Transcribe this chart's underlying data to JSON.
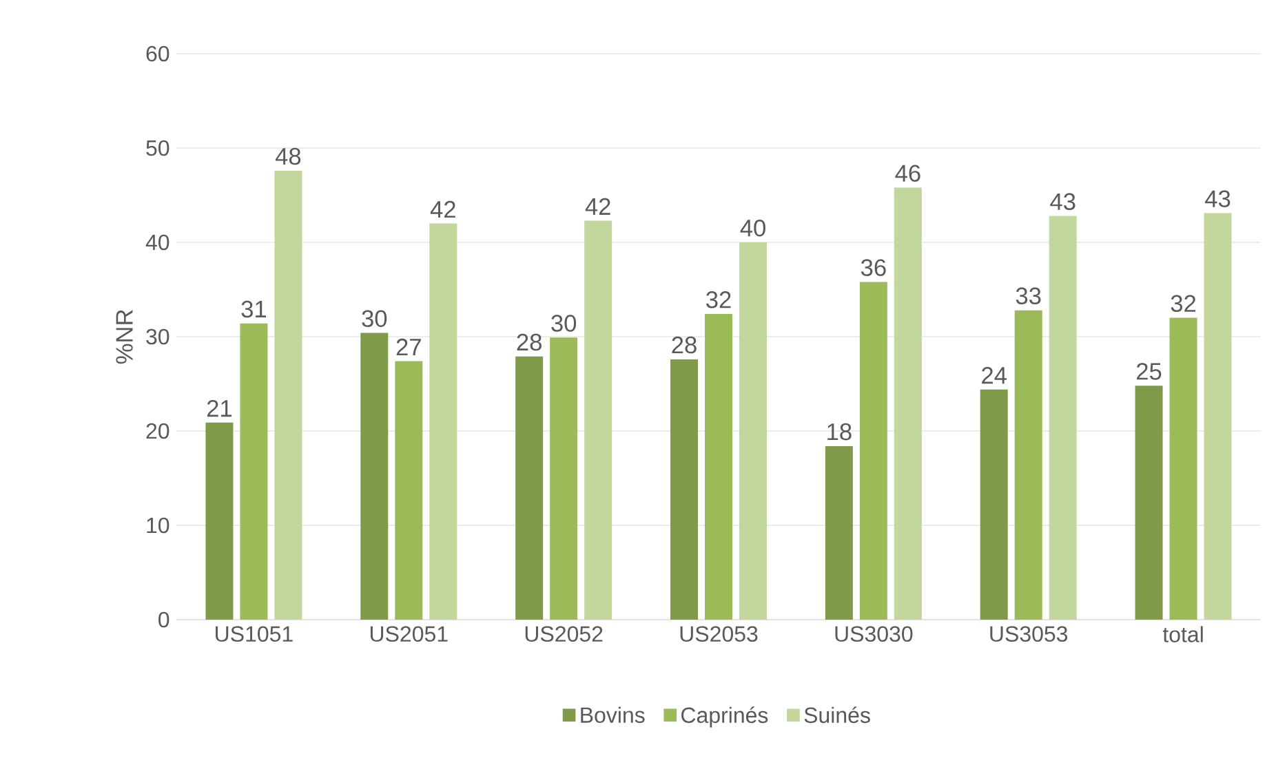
{
  "chart_data": {
    "type": "bar",
    "ylabel": "%NR",
    "categories": [
      "US1051",
      "US2051",
      "US2052",
      "US2053",
      "US3030",
      "US3053",
      "total"
    ],
    "series": [
      {
        "name": "Bovins",
        "color": "#7f9a48",
        "values": [
          20.9,
          30.4,
          27.9,
          27.6,
          18.4,
          24.4,
          24.8
        ],
        "value_labels": [
          "21",
          "30",
          "28",
          "28",
          "18",
          "24",
          "25"
        ]
      },
      {
        "name": "Caprinés",
        "color": "#9bbb59",
        "values": [
          31.4,
          27.4,
          29.9,
          32.4,
          35.8,
          32.8,
          32.0
        ],
        "value_labels": [
          "31",
          "27",
          "30",
          "32",
          "36",
          "33",
          "32"
        ]
      },
      {
        "name": "Suinés",
        "color": "#c3d69b",
        "values": [
          47.6,
          42.0,
          42.3,
          40.0,
          45.8,
          42.8,
          43.1
        ],
        "value_labels": [
          "48",
          "42",
          "42",
          "40",
          "46",
          "43",
          "43"
        ]
      }
    ],
    "ylim": [
      0,
      60
    ],
    "yticks": [
      0,
      10,
      20,
      30,
      40,
      50,
      60
    ],
    "grid": "y",
    "legend": "bottom"
  }
}
